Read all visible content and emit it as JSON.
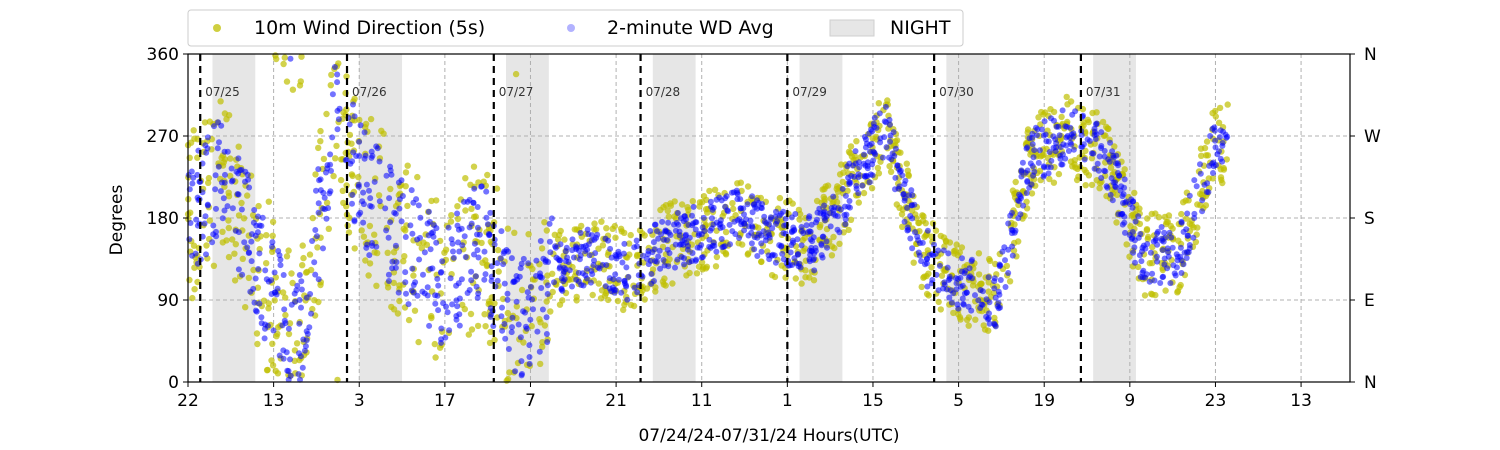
{
  "chart_data": {
    "type": "scatter",
    "ylabel": "Degrees",
    "xlabel": "07/24/24-07/31/24  Hours(UTC)",
    "ylim": [
      0,
      360
    ],
    "x_tick_labels": [
      "22",
      "13",
      "3",
      "17",
      "7",
      "21",
      "11",
      "1",
      "15",
      "5",
      "19",
      "9",
      "23",
      "13"
    ],
    "y_tick_labels": [
      "0",
      "90",
      "180",
      "270",
      "360"
    ],
    "y2_tick_labels": [
      "N",
      "E",
      "S",
      "W",
      "N"
    ],
    "grid": true,
    "legend_position": "top",
    "day_markers": [
      "07/25",
      "07/26",
      "07/27",
      "07/28",
      "07/29",
      "07/30",
      "07/31"
    ],
    "night_label": "NIGHT",
    "series": [
      {
        "name": "10m Wind Direction (5s)",
        "color": "#bfbf00",
        "x_hours": [
          0,
          6,
          12,
          18,
          24,
          30,
          36,
          42,
          48,
          54,
          60,
          66,
          72,
          78,
          84,
          90,
          96,
          102,
          108,
          114,
          120,
          126,
          132,
          138,
          144,
          150,
          156,
          162,
          168,
          170
        ],
        "values": [
          180,
          230,
          120,
          40,
          280,
          200,
          150,
          100,
          160,
          60,
          120,
          140,
          120,
          150,
          165,
          180,
          160,
          150,
          210,
          280,
          140,
          110,
          90,
          250,
          270,
          250,
          140,
          140,
          260,
          260
        ]
      },
      {
        "name": "2-minute WD Avg",
        "color": "#0000ff",
        "x_hours": [
          0,
          6,
          12,
          18,
          24,
          30,
          36,
          42,
          48,
          54,
          60,
          66,
          72,
          78,
          84,
          90,
          96,
          102,
          108,
          114,
          120,
          126,
          132,
          138,
          144,
          150,
          156,
          162,
          168,
          170
        ],
        "values": [
          180,
          230,
          120,
          40,
          280,
          200,
          150,
          100,
          160,
          60,
          120,
          140,
          120,
          150,
          165,
          180,
          160,
          150,
          210,
          280,
          140,
          110,
          90,
          250,
          270,
          250,
          140,
          140,
          260,
          260
        ]
      }
    ]
  }
}
